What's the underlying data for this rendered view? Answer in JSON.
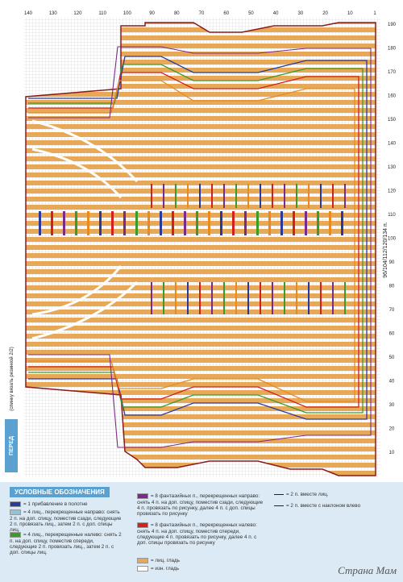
{
  "top_scale": [
    140,
    130,
    120,
    110,
    100,
    90,
    80,
    70,
    60,
    50,
    40,
    30,
    20,
    10,
    1
  ],
  "right_scale": [
    190,
    180,
    170,
    160,
    150,
    140,
    130,
    120,
    110,
    100,
    90,
    80,
    70,
    60,
    50,
    40,
    30,
    20,
    10
  ],
  "size_label": "96/104/112/120/134 п.",
  "side_note": "(спинку вязать резинкой 2/2)",
  "piece_label": "ПЕРЕД",
  "legend": {
    "title": "УСЛОВНЫЕ ОБОЗНАЧЕНИЯ",
    "items": [
      "= 1 прибавление в полотне",
      "= 4 лиц., перекрещенные направо: снять 2 п. на доп. спицу, поместив сзади, следующие 2 п. провязать лиц., затем 2 п. с доп. спицы лиц.",
      "= 4 лиц., перекрещенные налево: снять 2 п. на доп. спицу, поместив спереди, следующие 2 п. провязать лиц., затем 2 п. с доп. спицы лиц.",
      "= 8 фантазийных п., перекрещенных направо: снять 4 п. на доп. спицу, поместив сзади, следующие 4 п. провязать по рисунку, далее 4 п. с доп. спицы провязать по рисунку",
      "= 8 фантазийных п., перекрещенных налево: снять 4 п. на доп. спицу, поместив спереди, следующие 4 п. провязать по рисунку, далее 4 п. с доп. спицы провязать по рисунку",
      "= лиц. гладь",
      "= изн. гладь",
      "= 2 п. вместе лиц.",
      "= 2 п. вместе с наклоном влево"
    ]
  },
  "watermark": "Страна Мам"
}
